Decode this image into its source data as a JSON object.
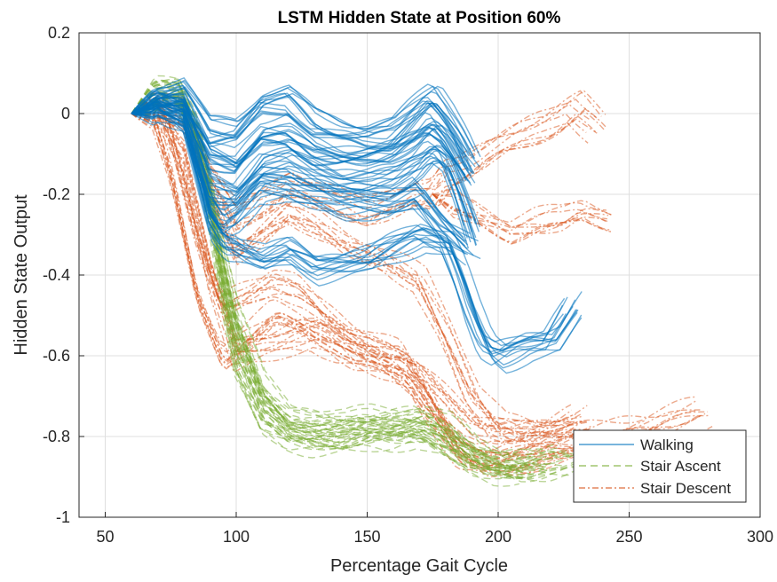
{
  "chart_data": {
    "type": "line",
    "title": "LSTM Hidden State at Position 60%",
    "xlabel": "Percentage Gait Cycle",
    "ylabel": "Hidden State Output",
    "xlim": [
      40,
      300
    ],
    "ylim": [
      -1,
      0.2
    ],
    "xticks": [
      50,
      100,
      150,
      200,
      250,
      300
    ],
    "yticks": [
      -1,
      -0.8,
      -0.6,
      -0.4,
      -0.2,
      0,
      0.2
    ],
    "xtick_labels": [
      "50",
      "100",
      "150",
      "200",
      "250",
      "300"
    ],
    "ytick_labels": [
      "-1",
      "-0.8",
      "-0.6",
      "-0.4",
      "-0.2",
      "0",
      "0.2"
    ],
    "grid": true,
    "legend_position": "bottom-right",
    "series": [
      {
        "name": "Walking",
        "color": "#0072BD",
        "style": "solid",
        "representative_curves": [
          {
            "x": [
              60,
              70,
              80,
              90,
              100,
              110,
              120,
              130,
              140,
              150,
              160,
              170,
              175,
              180,
              185,
              190
            ],
            "y": [
              0.0,
              0.04,
              0.05,
              -0.05,
              -0.05,
              0.02,
              0.03,
              -0.03,
              -0.05,
              -0.06,
              -0.05,
              0.01,
              0.04,
              0.0,
              -0.05,
              -0.12
            ]
          },
          {
            "x": [
              60,
              70,
              80,
              90,
              100,
              110,
              120,
              130,
              140,
              150,
              160,
              170,
              175,
              180,
              185,
              190
            ],
            "y": [
              0.0,
              0.03,
              0.03,
              -0.1,
              -0.12,
              -0.05,
              -0.05,
              -0.09,
              -0.1,
              -0.1,
              -0.09,
              -0.05,
              -0.02,
              -0.05,
              -0.1,
              -0.15
            ]
          },
          {
            "x": [
              60,
              70,
              80,
              90,
              100,
              110,
              120,
              130,
              140,
              150,
              160,
              170,
              175,
              180,
              185,
              190
            ],
            "y": [
              0.0,
              0.02,
              0.01,
              -0.18,
              -0.2,
              -0.13,
              -0.12,
              -0.15,
              -0.17,
              -0.17,
              -0.16,
              -0.12,
              -0.09,
              -0.12,
              -0.2,
              -0.3
            ]
          },
          {
            "x": [
              60,
              70,
              80,
              90,
              95,
              100,
              110,
              120,
              130,
              140,
              150,
              160,
              170,
              180,
              190
            ],
            "y": [
              0.0,
              0.02,
              0.0,
              -0.22,
              -0.27,
              -0.25,
              -0.18,
              -0.18,
              -0.2,
              -0.22,
              -0.22,
              -0.22,
              -0.2,
              -0.28,
              -0.33
            ]
          },
          {
            "x": [
              60,
              70,
              80,
              90,
              95,
              100,
              110,
              120,
              130,
              140,
              150,
              160,
              170,
              180,
              185,
              190,
              195,
              200,
              210,
              220,
              228
            ],
            "y": [
              0.0,
              0.02,
              -0.02,
              -0.27,
              -0.32,
              -0.33,
              -0.36,
              -0.34,
              -0.38,
              -0.37,
              -0.36,
              -0.33,
              -0.3,
              -0.32,
              -0.4,
              -0.5,
              -0.58,
              -0.6,
              -0.57,
              -0.56,
              -0.48
            ]
          }
        ]
      },
      {
        "name": "Stair Ascent",
        "color": "#77AC30",
        "style": "dashed",
        "representative_curves": [
          {
            "x": [
              60,
              70,
              78,
              85,
              90,
              95,
              100,
              110,
              120,
              130,
              140,
              150,
              160,
              170,
              180,
              190,
              200,
              210,
              220,
              230
            ],
            "y": [
              0.0,
              0.05,
              0.06,
              -0.05,
              -0.2,
              -0.4,
              -0.55,
              -0.72,
              -0.78,
              -0.79,
              -0.79,
              -0.78,
              -0.77,
              -0.77,
              -0.8,
              -0.85,
              -0.87,
              -0.87,
              -0.87,
              -0.86
            ]
          },
          {
            "x": [
              60,
              70,
              78,
              85,
              90,
              95,
              100,
              110,
              120,
              130,
              140,
              150,
              160,
              170,
              180,
              190,
              200,
              210,
              220
            ],
            "y": [
              0.0,
              0.05,
              0.05,
              -0.03,
              -0.18,
              -0.35,
              -0.5,
              -0.68,
              -0.75,
              -0.76,
              -0.77,
              -0.76,
              -0.76,
              -0.75,
              -0.78,
              -0.84,
              -0.86,
              -0.87,
              -0.86
            ]
          },
          {
            "x": [
              60,
              70,
              78,
              85,
              90,
              95,
              100,
              110,
              120,
              130,
              140,
              150,
              160,
              170,
              180,
              190,
              200,
              210
            ],
            "y": [
              0.0,
              0.04,
              0.04,
              -0.08,
              -0.25,
              -0.45,
              -0.62,
              -0.76,
              -0.8,
              -0.81,
              -0.81,
              -0.8,
              -0.8,
              -0.79,
              -0.82,
              -0.86,
              -0.88,
              -0.88
            ]
          }
        ]
      },
      {
        "name": "Stair Descent",
        "color": "#D95319",
        "style": "dashdot",
        "representative_curves": [
          {
            "x": [
              60,
              70,
              75,
              85,
              95,
              105,
              115,
              125,
              135,
              145,
              155,
              165,
              175,
              185,
              195,
              205,
              220,
              240,
              260,
              280
            ],
            "y": [
              0.0,
              0.02,
              -0.05,
              -0.3,
              -0.48,
              -0.45,
              -0.42,
              -0.44,
              -0.5,
              -0.55,
              -0.58,
              -0.6,
              -0.7,
              -0.82,
              -0.86,
              -0.85,
              -0.82,
              -0.8,
              -0.78,
              -0.74
            ]
          },
          {
            "x": [
              60,
              68,
              75,
              85,
              95,
              105,
              115,
              125,
              135,
              145,
              155,
              165,
              175,
              185,
              195,
              205,
              220,
              240,
              260
            ],
            "y": [
              0.0,
              0.0,
              -0.15,
              -0.45,
              -0.6,
              -0.55,
              -0.5,
              -0.52,
              -0.55,
              -0.6,
              -0.62,
              -0.65,
              -0.75,
              -0.85,
              -0.87,
              -0.86,
              -0.84,
              -0.82,
              -0.8
            ]
          },
          {
            "x": [
              60,
              70,
              80,
              90,
              100,
              110,
              120,
              130,
              140,
              150,
              160,
              170,
              180,
              190,
              200,
              210,
              220,
              230
            ],
            "y": [
              0.0,
              0.02,
              -0.02,
              -0.2,
              -0.35,
              -0.3,
              -0.25,
              -0.28,
              -0.32,
              -0.35,
              -0.38,
              -0.42,
              -0.55,
              -0.7,
              -0.78,
              -0.8,
              -0.78,
              -0.75
            ]
          },
          {
            "x": [
              60,
              70,
              80,
              90,
              100,
              110,
              120,
              130,
              140,
              150,
              160,
              170,
              175,
              180,
              190,
              200,
              210,
              220,
              230,
              238
            ],
            "y": [
              0.0,
              0.02,
              0.0,
              -0.15,
              -0.25,
              -0.22,
              -0.18,
              -0.2,
              -0.22,
              -0.24,
              -0.22,
              -0.2,
              -0.2,
              -0.15,
              -0.12,
              -0.08,
              -0.05,
              -0.02,
              0.02,
              -0.03
            ]
          },
          {
            "x": [
              175,
              185,
              195,
              205,
              215,
              225,
              232,
              243
            ],
            "y": [
              -0.2,
              -0.22,
              -0.25,
              -0.28,
              -0.26,
              -0.25,
              -0.23,
              -0.25
            ]
          },
          {
            "x": [
              60,
              70,
              80,
              90,
              100,
              110,
              120,
              130,
              140,
              150,
              160,
              170,
              180,
              190,
              200,
              210,
              220,
              232
            ],
            "y": [
              0.0,
              0.0,
              -0.1,
              -0.4,
              -0.6,
              -0.58,
              -0.56,
              -0.55,
              -0.58,
              -0.6,
              -0.62,
              -0.66,
              -0.72,
              -0.78,
              -0.8,
              -0.8,
              -0.8,
              -0.78
            ]
          }
        ]
      }
    ]
  }
}
